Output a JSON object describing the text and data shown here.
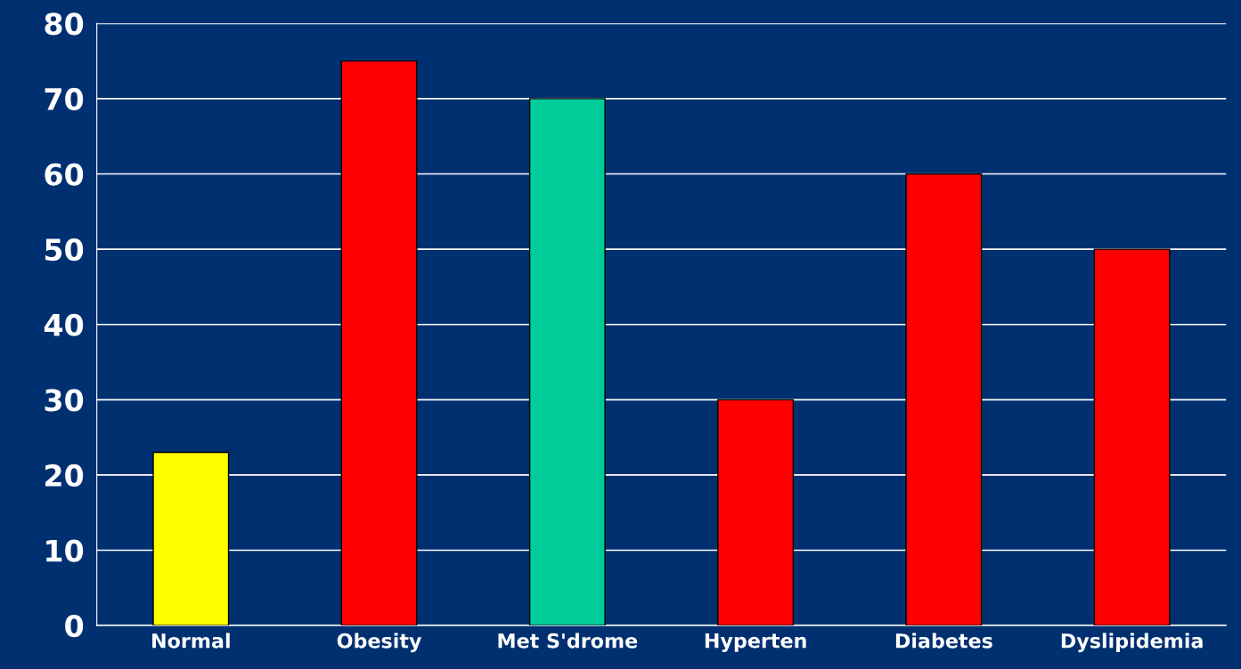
{
  "chart_data": {
    "type": "bar",
    "categories": [
      "Normal",
      "Obesity",
      "Met S'drome",
      "Hyperten",
      "Diabetes",
      "Dyslipidemia"
    ],
    "values": [
      23,
      75,
      70,
      30,
      60,
      50
    ],
    "colors": [
      "#ffff00",
      "#ff0000",
      "#00cc99",
      "#ff0000",
      "#ff0000",
      "#ff0000"
    ],
    "ylim": [
      0,
      80
    ],
    "yticks": [
      0,
      10,
      20,
      30,
      40,
      50,
      60,
      70,
      80
    ],
    "grid": "y"
  }
}
